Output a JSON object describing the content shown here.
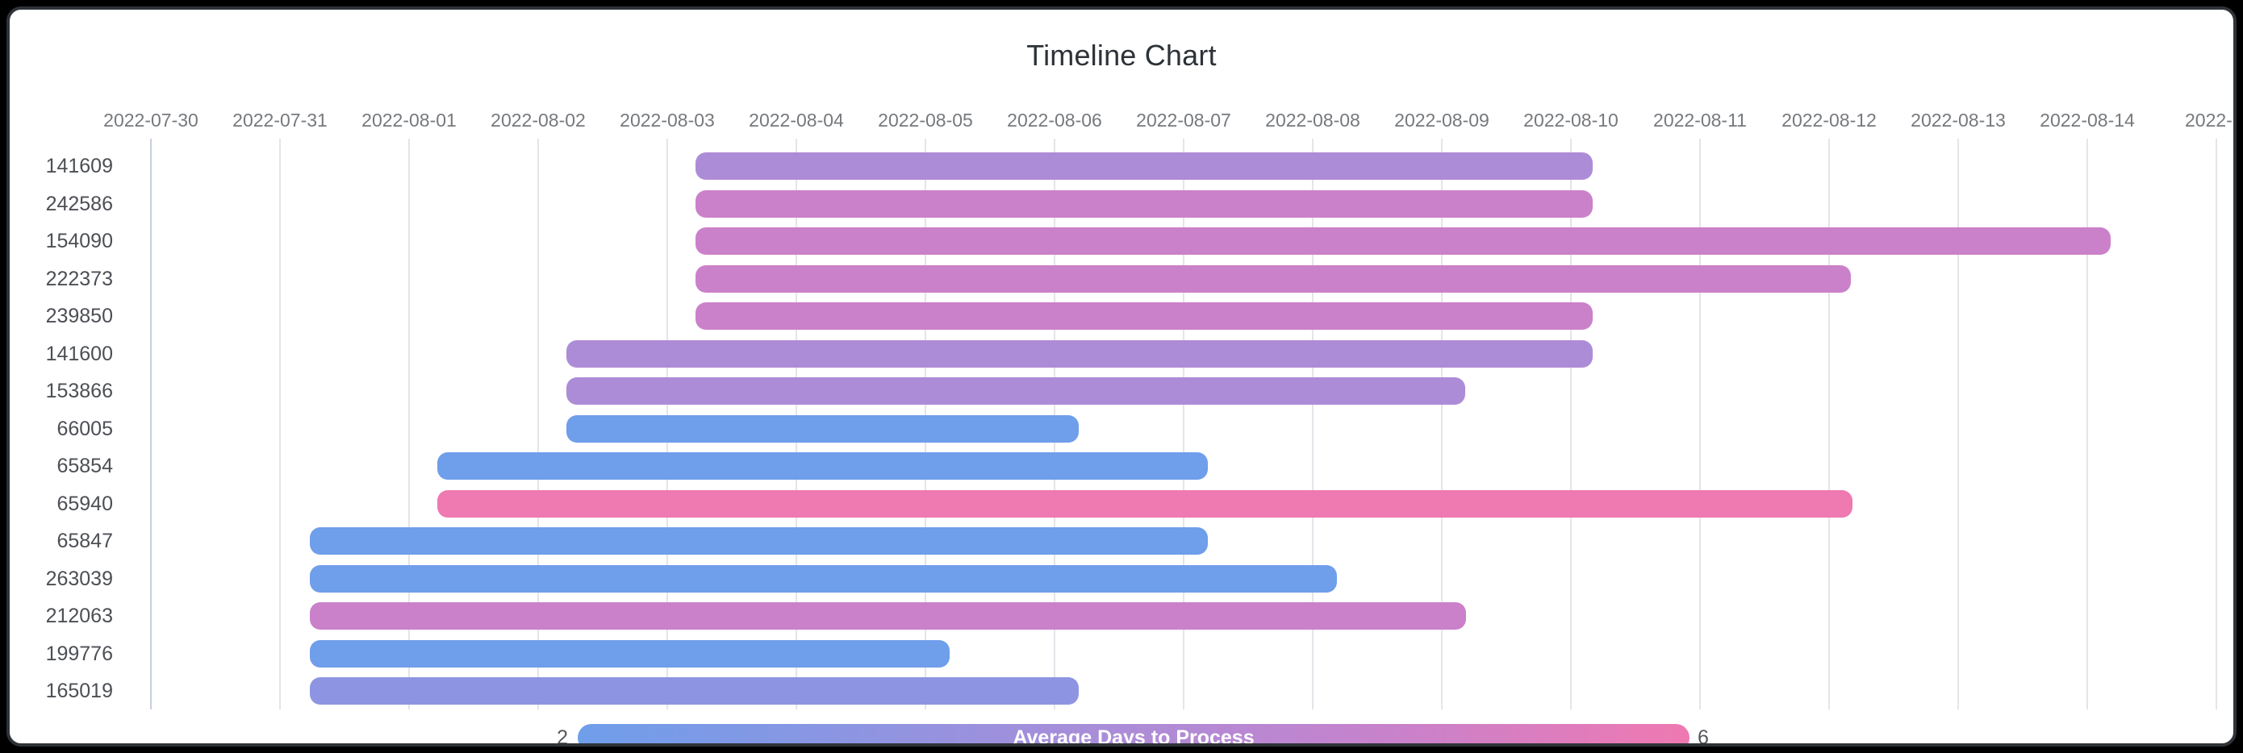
{
  "title": "Timeline Chart",
  "legend": {
    "label": "Average Days to Process",
    "min": "2",
    "max": "6"
  },
  "chart_data": {
    "type": "bar",
    "variant": "timeline-gantt",
    "title": "Timeline Chart",
    "x_axis": {
      "unit": "day",
      "start_date": "2022-07-30",
      "tick_labels": [
        "2022-07-30",
        "2022-07-31",
        "2022-08-01",
        "2022-08-02",
        "2022-08-03",
        "2022-08-04",
        "2022-08-05",
        "2022-08-06",
        "2022-08-07",
        "2022-08-08",
        "2022-08-09",
        "2022-08-10",
        "2022-08-11",
        "2022-08-12",
        "2022-08-13",
        "2022-08-14",
        "2022-..."
      ],
      "grid": true
    },
    "legend": {
      "label": "Average Days to Process",
      "min": 2,
      "max": 6,
      "position": "bottom",
      "gradient_stops": [
        "#6f9eea",
        "#8d95e2",
        "#ad8cd7",
        "#ca81ca",
        "#ef79b1"
      ]
    },
    "color_value_map": {
      "#6f9eea": 2,
      "#8d95e2": 3,
      "#ad8cd7": 4,
      "#ca81ca": 5,
      "#ef79b1": 6
    },
    "rows": [
      {
        "id": "141609",
        "start": "2022-08-03",
        "end": "2022-08-10",
        "start_day": 4.22,
        "end_day": 11.17,
        "color": "#ad8cd7",
        "avg_days_to_process_est": 4
      },
      {
        "id": "242586",
        "start": "2022-08-03",
        "end": "2022-08-10",
        "start_day": 4.22,
        "end_day": 11.17,
        "color": "#ca81ca",
        "avg_days_to_process_est": 5
      },
      {
        "id": "154090",
        "start": "2022-08-03",
        "end": "2022-08-14",
        "start_day": 4.22,
        "end_day": 15.18,
        "color": "#ca81ca",
        "avg_days_to_process_est": 5
      },
      {
        "id": "222373",
        "start": "2022-08-03",
        "end": "2022-08-12",
        "start_day": 4.22,
        "end_day": 13.17,
        "color": "#ca81ca",
        "avg_days_to_process_est": 5
      },
      {
        "id": "239850",
        "start": "2022-08-03",
        "end": "2022-08-10",
        "start_day": 4.22,
        "end_day": 11.17,
        "color": "#ca81ca",
        "avg_days_to_process_est": 5
      },
      {
        "id": "141600",
        "start": "2022-08-02",
        "end": "2022-08-10",
        "start_day": 3.22,
        "end_day": 11.17,
        "color": "#ad8cd7",
        "avg_days_to_process_est": 4
      },
      {
        "id": "153866",
        "start": "2022-08-02",
        "end": "2022-08-09",
        "start_day": 3.22,
        "end_day": 10.18,
        "color": "#ad8cd7",
        "avg_days_to_process_est": 4
      },
      {
        "id": "66005",
        "start": "2022-08-02",
        "end": "2022-08-06",
        "start_day": 3.22,
        "end_day": 7.19,
        "color": "#6f9eea",
        "avg_days_to_process_est": 2
      },
      {
        "id": "65854",
        "start": "2022-08-01",
        "end": "2022-08-07",
        "start_day": 2.22,
        "end_day": 8.19,
        "color": "#6f9eea",
        "avg_days_to_process_est": 2
      },
      {
        "id": "65940",
        "start": "2022-08-01",
        "end": "2022-08-12",
        "start_day": 2.22,
        "end_day": 13.18,
        "color": "#ef79b1",
        "avg_days_to_process_est": 6
      },
      {
        "id": "65847",
        "start": "2022-07-31",
        "end": "2022-08-07",
        "start_day": 1.23,
        "end_day": 8.19,
        "color": "#6f9eea",
        "avg_days_to_process_est": 2
      },
      {
        "id": "263039",
        "start": "2022-07-31",
        "end": "2022-08-08",
        "start_day": 1.23,
        "end_day": 9.19,
        "color": "#6f9eea",
        "avg_days_to_process_est": 2
      },
      {
        "id": "212063",
        "start": "2022-07-31",
        "end": "2022-08-09",
        "start_day": 1.23,
        "end_day": 10.19,
        "color": "#ca81ca",
        "avg_days_to_process_est": 5
      },
      {
        "id": "199776",
        "start": "2022-07-31",
        "end": "2022-08-05",
        "start_day": 1.23,
        "end_day": 6.19,
        "color": "#6f9eea",
        "avg_days_to_process_est": 2
      },
      {
        "id": "165019",
        "start": "2022-07-31",
        "end": "2022-08-06",
        "start_day": 1.23,
        "end_day": 7.19,
        "color": "#8d95e2",
        "avg_days_to_process_est": 3
      }
    ]
  }
}
